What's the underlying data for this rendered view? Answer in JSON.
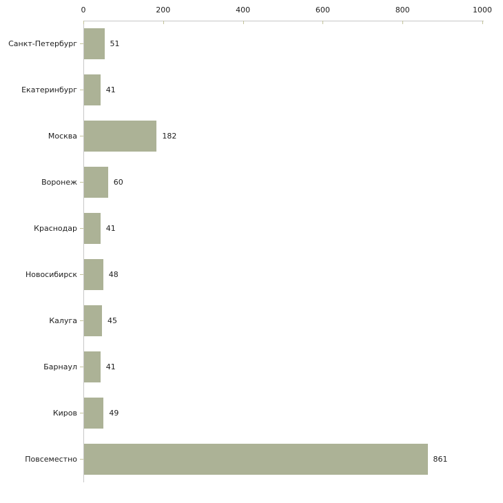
{
  "chart_data": {
    "type": "bar",
    "orientation": "horizontal",
    "categories": [
      "Санкт-Петербург",
      "Екатеринбург",
      "Москва",
      "Воронеж",
      "Краснодар",
      "Новосибирск",
      "Калуга",
      "Барнаул",
      "Киров",
      "Повсеместно"
    ],
    "values": [
      51,
      41,
      182,
      60,
      41,
      48,
      45,
      41,
      49,
      861
    ],
    "title": "",
    "xlabel": "",
    "ylabel": "",
    "xlim": [
      0,
      1000
    ],
    "x_ticks": [
      0,
      200,
      400,
      600,
      800,
      1000
    ],
    "axis_position": "top",
    "grid": false,
    "legend": false,
    "bar_color": "#acb296",
    "axis_line_color": "#c6c6c6",
    "tick_mark_color": "#c2c29a",
    "text_color": "#1c1c1c",
    "background_color": "#ffffff"
  }
}
